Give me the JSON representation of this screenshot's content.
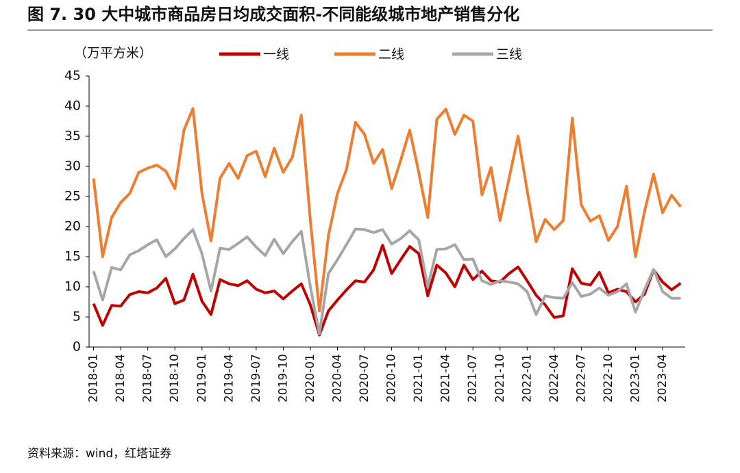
{
  "chart_data": {
    "type": "line",
    "title": "图 7. 30 大中城市商品房日均成交面积-不同能级城市地产销售分化",
    "ylabel": "（万平方米）",
    "source": "资料来源：wind，红塔证券",
    "categories": [
      "2018-01",
      null,
      null,
      "2018-04",
      null,
      null,
      "2018-07",
      null,
      null,
      "2018-10",
      null,
      null,
      "2019-01",
      null,
      null,
      "2019-04",
      null,
      null,
      "2019-07",
      null,
      null,
      "2019-10",
      null,
      null,
      "2020-01",
      null,
      null,
      "2020-04",
      null,
      null,
      "2020-07",
      null,
      null,
      "2020-10",
      null,
      null,
      "2021-01",
      null,
      null,
      "2021-04",
      null,
      null,
      "2021-07",
      null,
      null,
      "2021-10",
      null,
      null,
      "2022-01",
      null,
      null,
      "2022-04",
      null,
      null,
      "2022-07",
      null,
      null,
      "2022-10",
      null,
      null,
      "2023-01",
      null,
      null,
      "2023-04",
      null,
      null
    ],
    "series": [
      {
        "name": "一线",
        "color": "#c00000",
        "values": [
          7.2,
          3.6,
          6.9,
          6.8,
          8.7,
          9.2,
          9,
          9.8,
          11.4,
          7.2,
          7.8,
          12.1,
          7.6,
          5.4,
          11.2,
          10.5,
          10.2,
          11,
          9.6,
          9,
          9.3,
          8,
          9.3,
          10.5,
          7,
          2,
          6,
          7.8,
          9.5,
          11,
          10.8,
          12.8,
          16.9,
          12.2,
          14.5,
          16.7,
          15.5,
          8.5,
          13.6,
          12.3,
          10,
          13.6,
          11.2,
          12.6,
          11,
          10.8,
          12.2,
          13.3,
          11,
          8.6,
          7,
          4.9,
          5.2,
          13,
          10.6,
          10.3,
          12.4,
          9,
          9.6,
          9.2,
          7.5,
          8.8,
          12.8,
          10.8,
          9.5,
          10.6
        ]
      },
      {
        "name": "二线",
        "color": "#ed7d31",
        "values": [
          28,
          15,
          21.5,
          24,
          25.5,
          29,
          29.7,
          30.2,
          29.2,
          26.3,
          36,
          39.6,
          25.5,
          17.6,
          28,
          30.5,
          28,
          31.8,
          32.5,
          28.3,
          33,
          29,
          31.5,
          38.5,
          21,
          6,
          18.5,
          25.5,
          29.5,
          37.3,
          35.3,
          30.5,
          32.8,
          26.3,
          31,
          36,
          29,
          21.5,
          37.8,
          39.5,
          35.3,
          38.5,
          37.5,
          25.3,
          29.8,
          21,
          28,
          35,
          26,
          17.5,
          21.2,
          19.5,
          21,
          38,
          23.6,
          20.9,
          21.8,
          17.7,
          20,
          26.7,
          15,
          22.5,
          28.7,
          22.3,
          25.2,
          23.3
        ]
      },
      {
        "name": "三线",
        "color": "#a6a6a6",
        "values": [
          12.6,
          7.8,
          13.2,
          12.8,
          15.3,
          16,
          17,
          17.8,
          15,
          16.3,
          18,
          19.5,
          15.5,
          9.3,
          16.4,
          16.2,
          17.2,
          18.3,
          16.6,
          15.2,
          17.9,
          15.5,
          17.5,
          19.2,
          10,
          2.2,
          12.2,
          14.5,
          17,
          19.6,
          19.5,
          19,
          19.5,
          17.1,
          18,
          19.3,
          17.8,
          10,
          16.2,
          16.3,
          17,
          14.5,
          14.6,
          11,
          10.4,
          11,
          10.8,
          10.5,
          9.2,
          5.4,
          8.5,
          8.2,
          8.1,
          10.7,
          8.4,
          8.8,
          9.8,
          8.6,
          9.2,
          10.5,
          5.8,
          9.5,
          12.9,
          9.2,
          8.1,
          8.1
        ]
      }
    ],
    "ylim": [
      0,
      45
    ],
    "yticks": [
      0,
      5,
      10,
      15,
      20,
      25,
      30,
      35,
      40,
      45
    ]
  }
}
